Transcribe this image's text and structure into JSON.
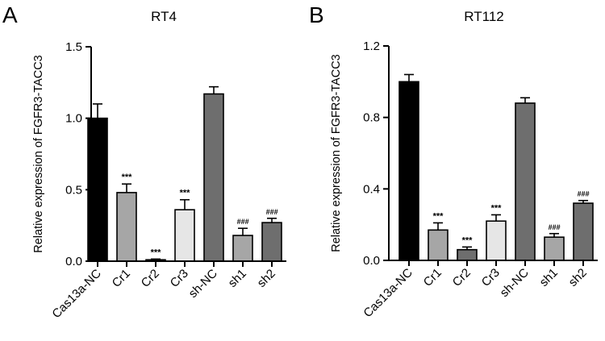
{
  "chart_data": [
    {
      "type": "bar",
      "panel": "A",
      "title": "RT4",
      "ylabel": "Relative expression of FGFR3-TACC3",
      "xlabel": "",
      "ylim": [
        0,
        1.5
      ],
      "yticks": [
        "0.0",
        "0.5",
        "1.0",
        "1.5"
      ],
      "categories": [
        "Cas13a-NC",
        "Cr1",
        "Cr2",
        "Cr3",
        "sh-NC",
        "sh1",
        "sh2"
      ],
      "values": [
        1.0,
        0.48,
        0.01,
        0.36,
        1.17,
        0.18,
        0.27
      ],
      "errors": [
        0.1,
        0.06,
        0.005,
        0.07,
        0.05,
        0.05,
        0.03
      ],
      "significance": [
        "",
        "***",
        "***",
        "***",
        "",
        "###",
        "###"
      ],
      "colors": [
        "#000000",
        "#a6a6a6",
        "#6e6e6e",
        "#e6e6e6",
        "#6e6e6e",
        "#a6a6a6",
        "#6e6e6e"
      ],
      "grid": false
    },
    {
      "type": "bar",
      "panel": "B",
      "title": "RT112",
      "ylabel": "Relative expression of FGFR3-TACC3",
      "xlabel": "",
      "ylim": [
        0,
        1.2
      ],
      "yticks": [
        "0.0",
        "0.4",
        "0.8",
        "1.2"
      ],
      "categories": [
        "Cas13a-NC",
        "Cr1",
        "Cr2",
        "Cr3",
        "sh-NC",
        "sh1",
        "sh2"
      ],
      "values": [
        1.0,
        0.17,
        0.06,
        0.22,
        0.88,
        0.13,
        0.32
      ],
      "errors": [
        0.04,
        0.04,
        0.015,
        0.035,
        0.03,
        0.02,
        0.015
      ],
      "significance": [
        "",
        "***",
        "***",
        "***",
        "",
        "###",
        "###"
      ],
      "colors": [
        "#000000",
        "#a6a6a6",
        "#6e6e6e",
        "#e6e6e6",
        "#6e6e6e",
        "#a6a6a6",
        "#6e6e6e"
      ],
      "grid": false
    }
  ]
}
